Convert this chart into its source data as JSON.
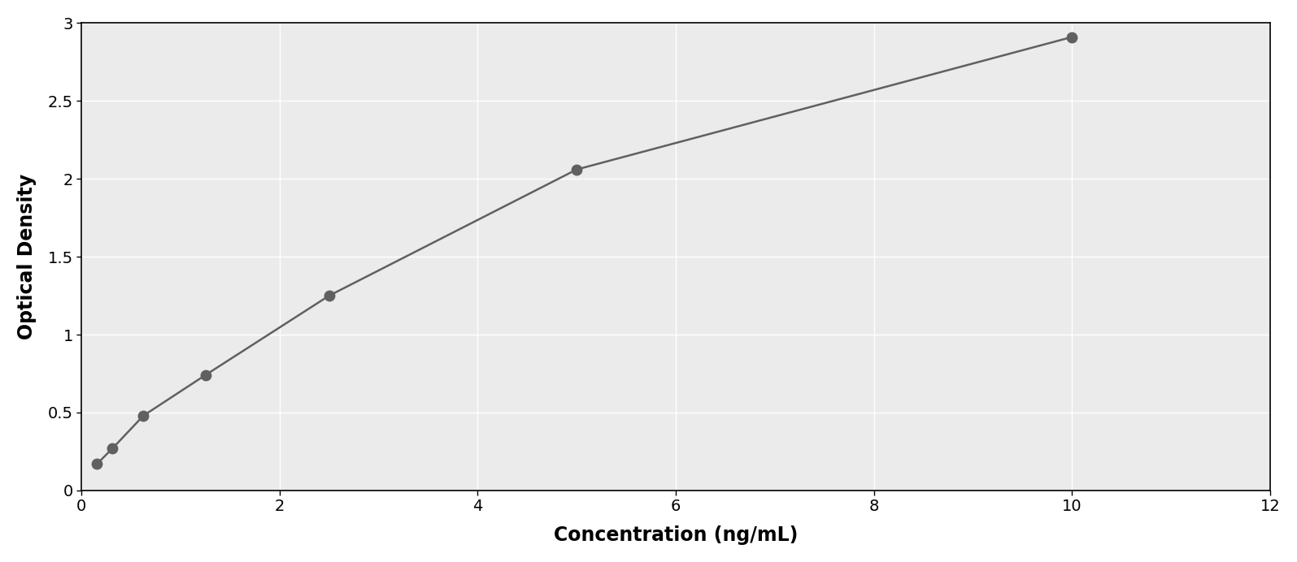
{
  "x_data": [
    0.156,
    0.313,
    0.625,
    1.25,
    2.5,
    5.0,
    10.0
  ],
  "y_data": [
    0.17,
    0.27,
    0.48,
    0.74,
    1.25,
    2.06,
    2.91
  ],
  "xlabel": "Concentration (ng/mL)",
  "ylabel": "Optical Density",
  "xlim": [
    0,
    12
  ],
  "ylim": [
    0,
    3
  ],
  "xticks": [
    0,
    2,
    4,
    6,
    8,
    10,
    12
  ],
  "yticks": [
    0,
    0.5,
    1.0,
    1.5,
    2.0,
    2.5,
    3.0
  ],
  "marker_color": "#606060",
  "line_color": "#606060",
  "background_color": "#ffffff",
  "plot_bg_color": "#ebebeb",
  "grid_color": "#ffffff",
  "marker_size": 9,
  "line_width": 1.8,
  "xlabel_fontsize": 17,
  "ylabel_fontsize": 17,
  "tick_fontsize": 14,
  "xlabel_fontweight": "bold",
  "ylabel_fontweight": "bold",
  "border_color": "#000000"
}
